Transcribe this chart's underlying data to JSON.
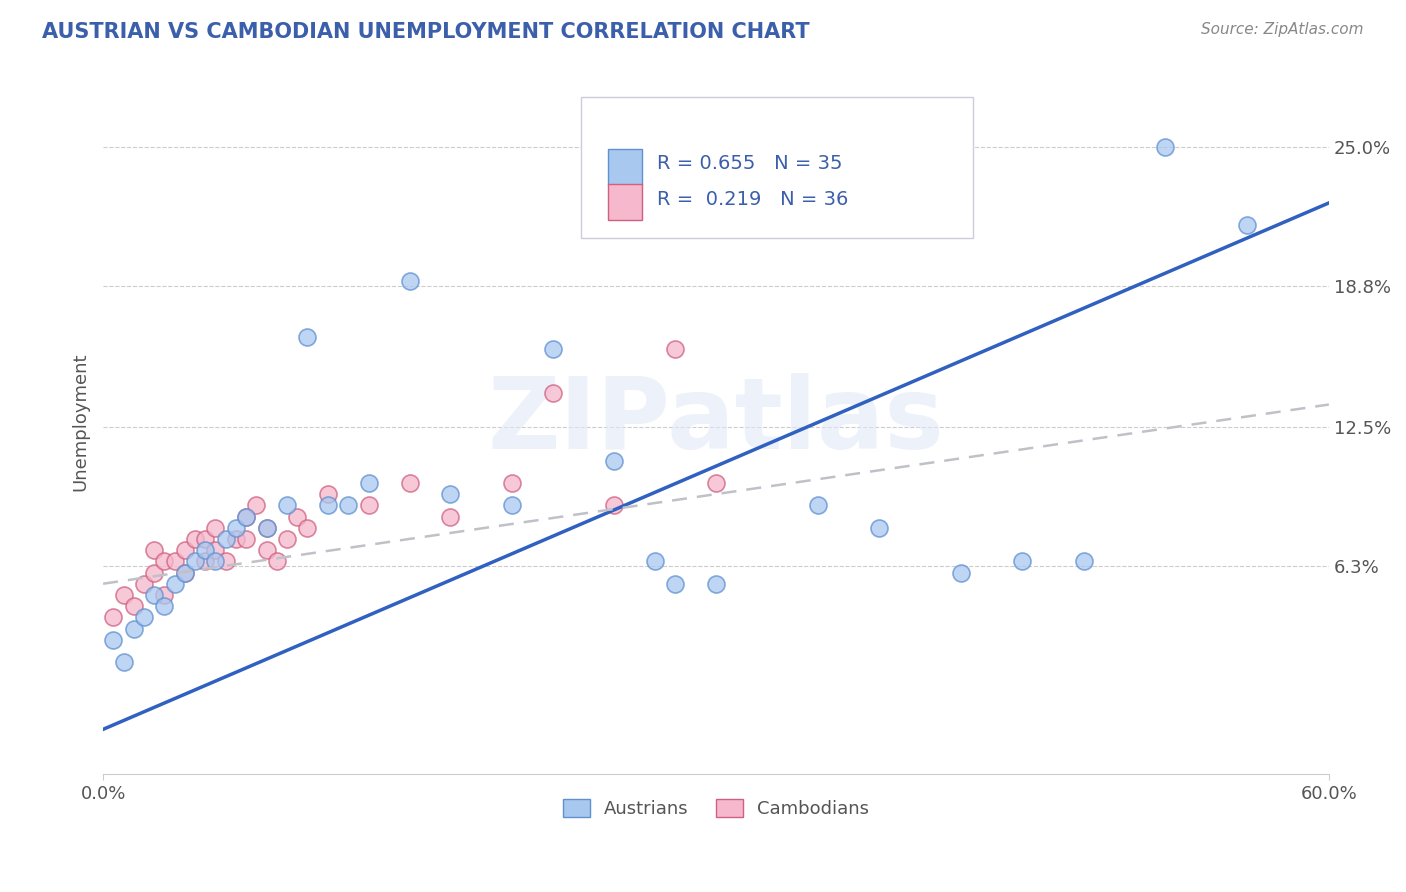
{
  "title": "AUSTRIAN VS CAMBODIAN UNEMPLOYMENT CORRELATION CHART",
  "source": "Source: ZipAtlas.com",
  "ylabel": "Unemployment",
  "yticks": [
    0.063,
    0.125,
    0.188,
    0.25
  ],
  "ytick_labels": [
    "6.3%",
    "12.5%",
    "18.8%",
    "25.0%"
  ],
  "xlim": [
    0.0,
    0.6
  ],
  "ylim": [
    -0.03,
    0.285
  ],
  "legend_line1": "R = 0.655   N = 35",
  "legend_line2": "R =  0.219   N = 36",
  "legend_label_austrians": "Austrians",
  "legend_label_cambodians": "Cambodians",
  "color_austrians_fill": "#A8C8F0",
  "color_austrians_edge": "#6090D0",
  "color_cambodians_fill": "#F5B8CC",
  "color_cambodians_edge": "#D06080",
  "color_line_austrians": "#3060C0",
  "color_line_cambodians": "#C0C0C8",
  "watermark": "ZIPatlas",
  "title_color": "#3B5FAA",
  "source_color": "#888888",
  "grid_color": "#CCCCCC",
  "legend_text_color": "#3B5FAA",
  "legend_box_color": "#DDDDEE",
  "austrians_x": [
    0.005,
    0.01,
    0.015,
    0.02,
    0.025,
    0.03,
    0.035,
    0.04,
    0.045,
    0.05,
    0.055,
    0.06,
    0.065,
    0.07,
    0.08,
    0.09,
    0.1,
    0.11,
    0.12,
    0.13,
    0.15,
    0.17,
    0.2,
    0.22,
    0.25,
    0.27,
    0.28,
    0.3,
    0.35,
    0.38,
    0.42,
    0.45,
    0.48,
    0.52,
    0.56
  ],
  "austrians_y": [
    0.03,
    0.02,
    0.035,
    0.04,
    0.05,
    0.045,
    0.055,
    0.06,
    0.065,
    0.07,
    0.065,
    0.075,
    0.08,
    0.085,
    0.08,
    0.09,
    0.165,
    0.09,
    0.09,
    0.1,
    0.19,
    0.095,
    0.09,
    0.16,
    0.11,
    0.065,
    0.055,
    0.055,
    0.09,
    0.08,
    0.06,
    0.065,
    0.065,
    0.25,
    0.215
  ],
  "cambodians_x": [
    0.005,
    0.01,
    0.015,
    0.02,
    0.025,
    0.025,
    0.03,
    0.03,
    0.035,
    0.04,
    0.04,
    0.045,
    0.05,
    0.05,
    0.055,
    0.055,
    0.06,
    0.065,
    0.07,
    0.07,
    0.075,
    0.08,
    0.08,
    0.085,
    0.09,
    0.095,
    0.1,
    0.11,
    0.13,
    0.15,
    0.17,
    0.2,
    0.22,
    0.25,
    0.28,
    0.3
  ],
  "cambodians_y": [
    0.04,
    0.05,
    0.045,
    0.055,
    0.06,
    0.07,
    0.05,
    0.065,
    0.065,
    0.06,
    0.07,
    0.075,
    0.065,
    0.075,
    0.07,
    0.08,
    0.065,
    0.075,
    0.075,
    0.085,
    0.09,
    0.07,
    0.08,
    0.065,
    0.075,
    0.085,
    0.08,
    0.095,
    0.09,
    0.1,
    0.085,
    0.1,
    0.14,
    0.09,
    0.16,
    0.1
  ],
  "austrians_line_x": [
    0.0,
    0.6
  ],
  "austrians_line_y": [
    -0.01,
    0.225
  ],
  "cambodians_line_x": [
    0.0,
    0.6
  ],
  "cambodians_line_y": [
    0.055,
    0.135
  ]
}
